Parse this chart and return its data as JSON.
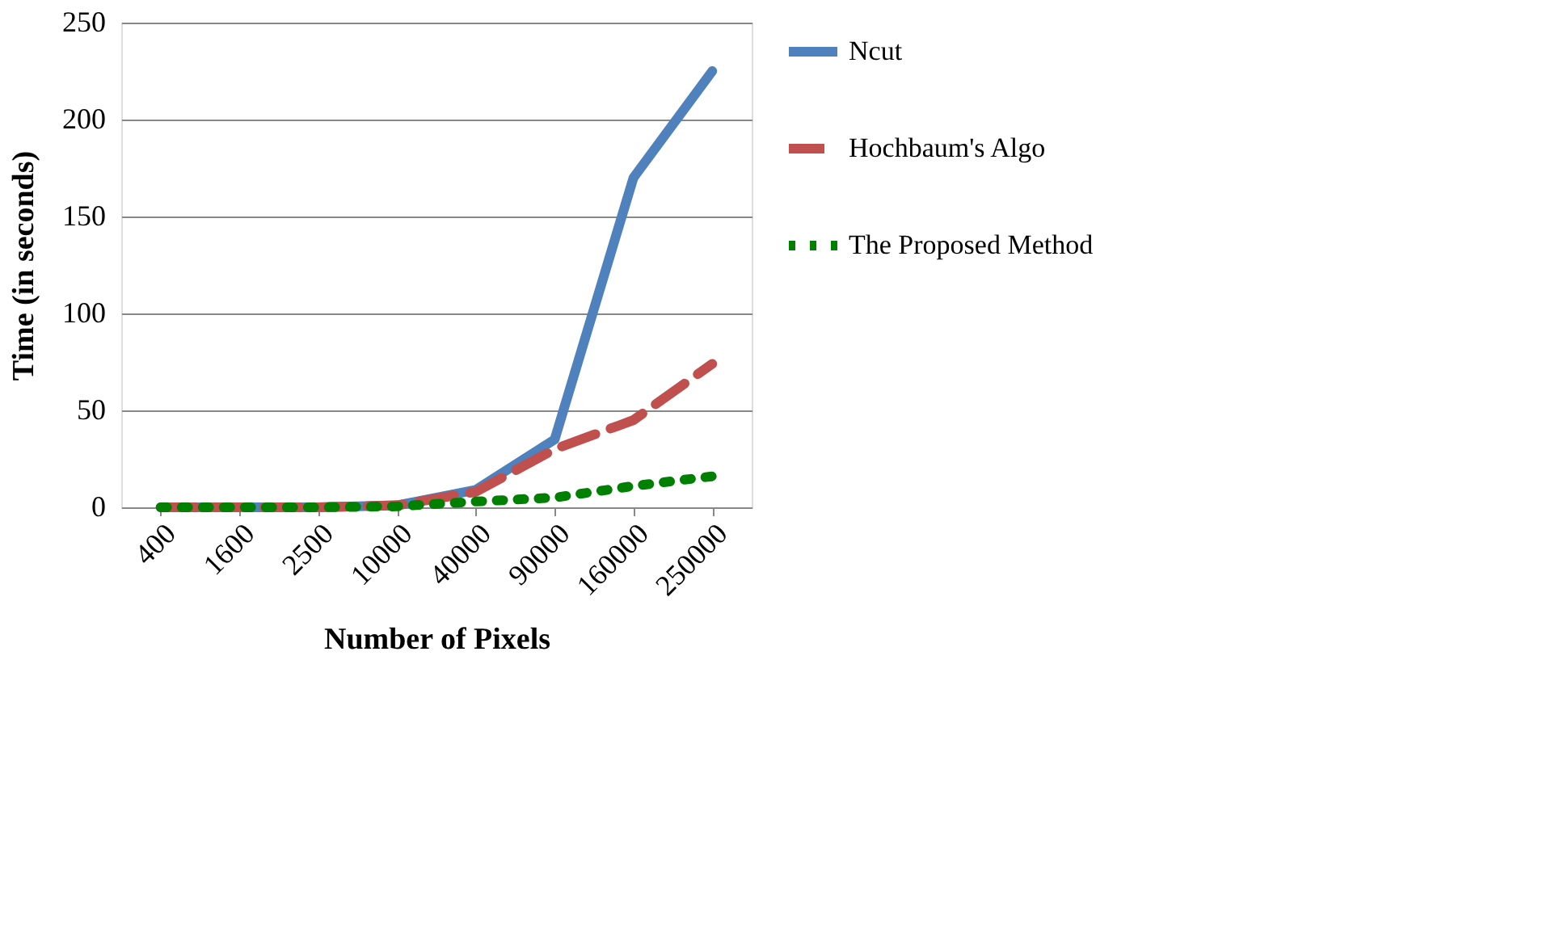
{
  "chart_data": {
    "type": "line",
    "xlabel": "Number of Pixels",
    "ylabel": "Time (in seconds)",
    "categories": [
      "400",
      "1600",
      "2500",
      "10000",
      "40000",
      "90000",
      "160000",
      "250000"
    ],
    "series": [
      {
        "name": "Ncut",
        "color": "#4f81bd",
        "line_style": "solid",
        "values": [
          0,
          0,
          0,
          1,
          9,
          35,
          170,
          225
        ]
      },
      {
        "name": "Hochbaum's Algo",
        "color": "#c0504d",
        "line_style": "dashed",
        "values": [
          0,
          0,
          0,
          1,
          8,
          30,
          45,
          74
        ]
      },
      {
        "name": "The Proposed Method",
        "color": "#008000",
        "line_style": "dotted",
        "values": [
          0,
          0,
          0,
          0.5,
          3,
          5,
          11,
          16
        ]
      }
    ],
    "ylim": [
      0,
      250
    ],
    "yticks": [
      0,
      50,
      100,
      150,
      200,
      250
    ],
    "grid": "y",
    "legend": "right",
    "marker": "none"
  }
}
